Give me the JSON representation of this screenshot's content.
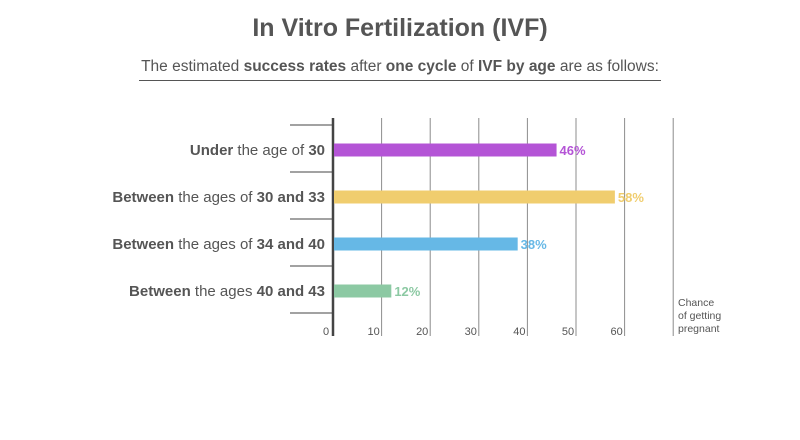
{
  "title": "In Vitro Fertilization (IVF)",
  "subtitle": {
    "parts": [
      {
        "text": "The estimated ",
        "bold": false
      },
      {
        "text": "success rates",
        "bold": true
      },
      {
        "text": " after ",
        "bold": false
      },
      {
        "text": "one cycle",
        "bold": true
      },
      {
        "text": " of ",
        "bold": false
      },
      {
        "text": "IVF by age",
        "bold": true
      },
      {
        "text": " are as follows:",
        "bold": false
      }
    ]
  },
  "side_note": [
    "Chance",
    "of getting",
    "pregnant"
  ],
  "chart_data": {
    "type": "bar",
    "orientation": "horizontal",
    "categories": [
      [
        {
          "text": "Under",
          "bold": true
        },
        {
          "text": " the age of ",
          "bold": false
        },
        {
          "text": "30",
          "bold": true
        }
      ],
      [
        {
          "text": "Between",
          "bold": true
        },
        {
          "text": " the ages of ",
          "bold": false
        },
        {
          "text": "30 and 33",
          "bold": true
        }
      ],
      [
        {
          "text": "Between",
          "bold": true
        },
        {
          "text": " the ages of ",
          "bold": false
        },
        {
          "text": "34 and 40",
          "bold": true
        }
      ],
      [
        {
          "text": "Between",
          "bold": true
        },
        {
          "text": " the ages ",
          "bold": false
        },
        {
          "text": "40 and 43",
          "bold": true
        }
      ]
    ],
    "values": [
      46,
      58,
      38,
      12
    ],
    "value_labels": [
      "46%",
      "58%",
      "38%",
      "12%"
    ],
    "colors": [
      "#b454d6",
      "#f0cd6e",
      "#66b8e6",
      "#8cc9a3"
    ],
    "xlim": [
      0,
      70
    ],
    "xticks": [
      0,
      10,
      20,
      30,
      40,
      50,
      60
    ],
    "xtick_labels": [
      "0",
      "10",
      "20",
      "30",
      "40",
      "50",
      "60"
    ],
    "grid": true,
    "title": "In Vitro Fertilization (IVF)",
    "xlabel": "Chance of getting pregnant",
    "ylabel": ""
  }
}
